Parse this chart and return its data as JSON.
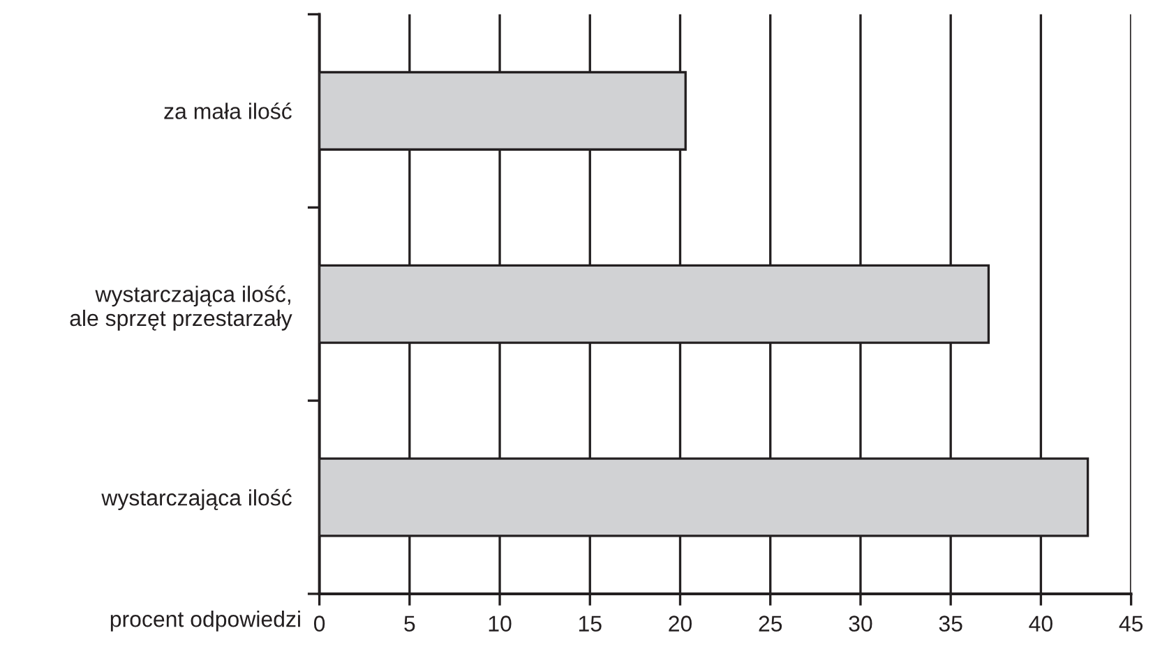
{
  "chart_data": {
    "type": "bar",
    "orientation": "horizontal",
    "categories": [
      "za mała ilość",
      "wystarczająca ilość,\nale sprzęt przestarzały",
      "wystarczająca ilość"
    ],
    "values": [
      20.3,
      37.1,
      42.6
    ],
    "color": "#d1d2d4",
    "xlabel": "procent odpowiedzi",
    "xlim": [
      0,
      45
    ],
    "xticks": [
      0,
      5,
      10,
      15,
      20,
      25,
      30,
      35,
      40,
      45
    ],
    "grid": "x"
  }
}
